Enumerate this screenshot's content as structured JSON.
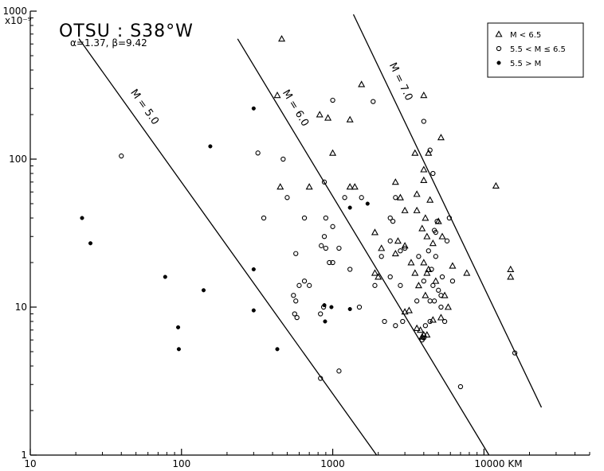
{
  "chart_data": {
    "type": "scatter",
    "title": "OTSU : S38°W",
    "subtitle": "α=1.37, β=9.42",
    "x_scale": "log",
    "y_scale": "log",
    "xlim": [
      10,
      50000
    ],
    "ylim": [
      1,
      1000
    ],
    "x_ticks": [
      {
        "value": 10,
        "label": "10"
      },
      {
        "value": 100,
        "label": "100"
      },
      {
        "value": 1000,
        "label": "1000"
      },
      {
        "value": 10000,
        "label": "10000 KM"
      }
    ],
    "y_ticks": [
      {
        "value": 1,
        "label": "1"
      },
      {
        "value": 10,
        "label": "10"
      },
      {
        "value": 100,
        "label": "100"
      },
      {
        "value": 1000,
        "label": "1000"
      }
    ],
    "y_unit": "x10⁻⁹",
    "grid": false,
    "legend_position": "top-right",
    "series": [
      {
        "name": "M < 6.5",
        "marker": "triangle",
        "points": [
          [
            460,
            650
          ],
          [
            1550,
            320
          ],
          [
            4000,
            270
          ],
          [
            430,
            270
          ],
          [
            820,
            200
          ],
          [
            930,
            190
          ],
          [
            1300,
            185
          ],
          [
            5200,
            140
          ],
          [
            3500,
            110
          ],
          [
            1000,
            110
          ],
          [
            4300,
            110
          ],
          [
            4000,
            85
          ],
          [
            4000,
            72
          ],
          [
            700,
            65
          ],
          [
            450,
            65
          ],
          [
            1300,
            65
          ],
          [
            1400,
            65
          ],
          [
            2600,
            70
          ],
          [
            12000,
            66
          ],
          [
            3600,
            58
          ],
          [
            4400,
            53
          ],
          [
            2800,
            55
          ],
          [
            3000,
            45
          ],
          [
            3600,
            45
          ],
          [
            4100,
            40
          ],
          [
            5000,
            38
          ],
          [
            1900,
            32
          ],
          [
            2700,
            28
          ],
          [
            3900,
            34
          ],
          [
            4200,
            30
          ],
          [
            5300,
            30
          ],
          [
            2100,
            25
          ],
          [
            2600,
            23
          ],
          [
            3000,
            26
          ],
          [
            4600,
            27
          ],
          [
            3300,
            20
          ],
          [
            4000,
            20
          ],
          [
            4200,
            17
          ],
          [
            3500,
            17
          ],
          [
            3700,
            14
          ],
          [
            4300,
            18
          ],
          [
            1900,
            17
          ],
          [
            2000,
            16
          ],
          [
            4800,
            15
          ],
          [
            6200,
            19
          ],
          [
            7700,
            17
          ],
          [
            15000,
            18
          ],
          [
            15000,
            16
          ],
          [
            4100,
            12
          ],
          [
            5500,
            12
          ],
          [
            3000,
            9.3
          ],
          [
            3200,
            9.5
          ],
          [
            4600,
            8.2
          ],
          [
            3600,
            7.2
          ],
          [
            5200,
            8.5
          ],
          [
            4000,
            6.5
          ],
          [
            4200,
            6.5
          ],
          [
            3900,
            6.3
          ],
          [
            3800,
            7
          ],
          [
            5800,
            10
          ]
        ]
      },
      {
        "name": "5.5 < M ≤ 6.5",
        "marker": "open-circle",
        "points": [
          [
            40,
            105
          ],
          [
            320,
            110
          ],
          [
            470,
            100
          ],
          [
            1000,
            250
          ],
          [
            1850,
            245
          ],
          [
            4000,
            180
          ],
          [
            4400,
            115
          ],
          [
            4600,
            80
          ],
          [
            880,
            70
          ],
          [
            500,
            55
          ],
          [
            1200,
            55
          ],
          [
            1550,
            55
          ],
          [
            2600,
            55
          ],
          [
            2400,
            40
          ],
          [
            900,
            40
          ],
          [
            350,
            40
          ],
          [
            650,
            40
          ],
          [
            1000,
            35
          ],
          [
            880,
            30
          ],
          [
            840,
            26
          ],
          [
            1100,
            25
          ],
          [
            2500,
            38
          ],
          [
            4900,
            38
          ],
          [
            4700,
            33
          ],
          [
            570,
            23
          ],
          [
            900,
            25
          ],
          [
            950,
            20
          ],
          [
            1300,
            18
          ],
          [
            2100,
            22
          ],
          [
            2400,
            28
          ],
          [
            2800,
            24
          ],
          [
            3000,
            25
          ],
          [
            3700,
            22
          ],
          [
            4300,
            24
          ],
          [
            4800,
            22
          ],
          [
            4500,
            18
          ],
          [
            600,
            14
          ],
          [
            650,
            15
          ],
          [
            700,
            14
          ],
          [
            550,
            12
          ],
          [
            570,
            11
          ],
          [
            1000,
            20
          ],
          [
            1900,
            14
          ],
          [
            2400,
            16
          ],
          [
            2800,
            14
          ],
          [
            4000,
            15
          ],
          [
            4600,
            14
          ],
          [
            5300,
            16
          ],
          [
            6200,
            15
          ],
          [
            3600,
            11
          ],
          [
            5000,
            13
          ],
          [
            5200,
            12
          ],
          [
            4400,
            11
          ],
          [
            4700,
            11
          ],
          [
            5200,
            10
          ],
          [
            1500,
            10
          ],
          [
            870,
            10
          ],
          [
            830,
            9
          ],
          [
            560,
            9
          ],
          [
            580,
            8.5
          ],
          [
            2200,
            8
          ],
          [
            2900,
            8
          ],
          [
            2600,
            7.5
          ],
          [
            4000,
            6.2
          ],
          [
            4100,
            7.5
          ],
          [
            4400,
            8
          ],
          [
            5500,
            8
          ],
          [
            3900,
            6
          ],
          [
            1100,
            3.7
          ],
          [
            830,
            3.3
          ],
          [
            7000,
            2.9
          ],
          [
            16000,
            4.9
          ],
          [
            5700,
            28
          ],
          [
            5900,
            40
          ],
          [
            4800,
            32
          ]
        ]
      },
      {
        "name": "5.5 > M",
        "marker": "filled-circle",
        "points": [
          [
            22,
            40
          ],
          [
            25,
            27
          ],
          [
            155,
            122
          ],
          [
            300,
            220
          ],
          [
            300,
            18
          ],
          [
            140,
            13
          ],
          [
            78,
            16
          ],
          [
            95,
            7.3
          ],
          [
            96,
            5.2
          ],
          [
            300,
            9.5
          ],
          [
            430,
            5.2
          ],
          [
            890,
            8
          ],
          [
            880,
            10.3
          ],
          [
            980,
            10
          ],
          [
            1300,
            9.7
          ],
          [
            1300,
            47
          ],
          [
            1700,
            50
          ]
        ]
      }
    ],
    "lines": [
      {
        "label": "M = 5.0",
        "x": [
          21,
          1950
        ],
        "y": [
          650,
          1.0
        ]
      },
      {
        "label": "M = 6.0",
        "x": [
          235,
          10800
        ],
        "y": [
          650,
          1.0
        ]
      },
      {
        "label": "M = 7.0",
        "x": [
          1370,
          24000
        ],
        "y": [
          950,
          2.1
        ]
      }
    ]
  },
  "legend": {
    "items": [
      {
        "marker": "triangle",
        "label": "M < 6.5"
      },
      {
        "marker": "open-circle",
        "label": "5.5 < M ≤ 6.5"
      },
      {
        "marker": "filled-circle",
        "label": "5.5 > M"
      }
    ]
  }
}
